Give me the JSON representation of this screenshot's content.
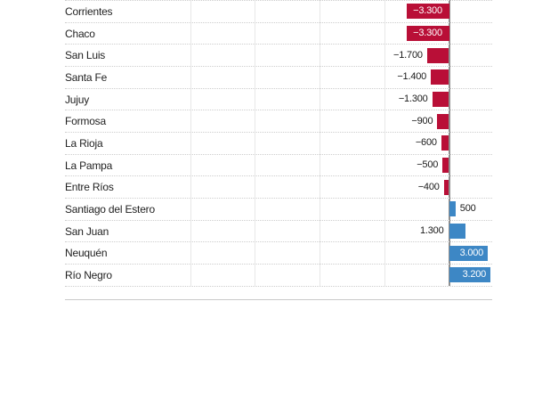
{
  "chart_data": {
    "type": "bar",
    "orientation": "horizontal",
    "title": "",
    "xlabel": "",
    "ylabel": "",
    "categories": [
      "Corrientes",
      "Chaco",
      "San Luis",
      "Santa Fe",
      "Jujuy",
      "Formosa",
      "La Rioja",
      "La Pampa",
      "Entre Ríos",
      "Santiago del Estero",
      "San Juan",
      "Neuquén",
      "Río Negro"
    ],
    "values": [
      -3300,
      -3300,
      -1700,
      -1400,
      -1300,
      -900,
      -600,
      -500,
      -400,
      500,
      1300,
      3000,
      3200
    ],
    "value_labels": [
      "−3.300",
      "−3.300",
      "−1.700",
      "−1.400",
      "−1.300",
      "−900",
      "−600",
      "−500",
      "−400",
      "500",
      "1.300",
      "3.000",
      "3.200"
    ],
    "value_label_placement": [
      "inside-center",
      "inside-center",
      "left-of-bar",
      "left-of-bar",
      "left-of-bar",
      "left-of-bar",
      "left-of-bar",
      "left-of-bar",
      "left-of-bar",
      "right-of-bar",
      "left-of-zero",
      "inside-right",
      "inside-right"
    ],
    "negative_color": "#b90f37",
    "positive_color": "#3d87c5",
    "xlim": [
      -20000,
      3300
    ],
    "gridline_step": 5000,
    "grid": true,
    "legend_position": "none",
    "row_separator_style": "dotted"
  }
}
